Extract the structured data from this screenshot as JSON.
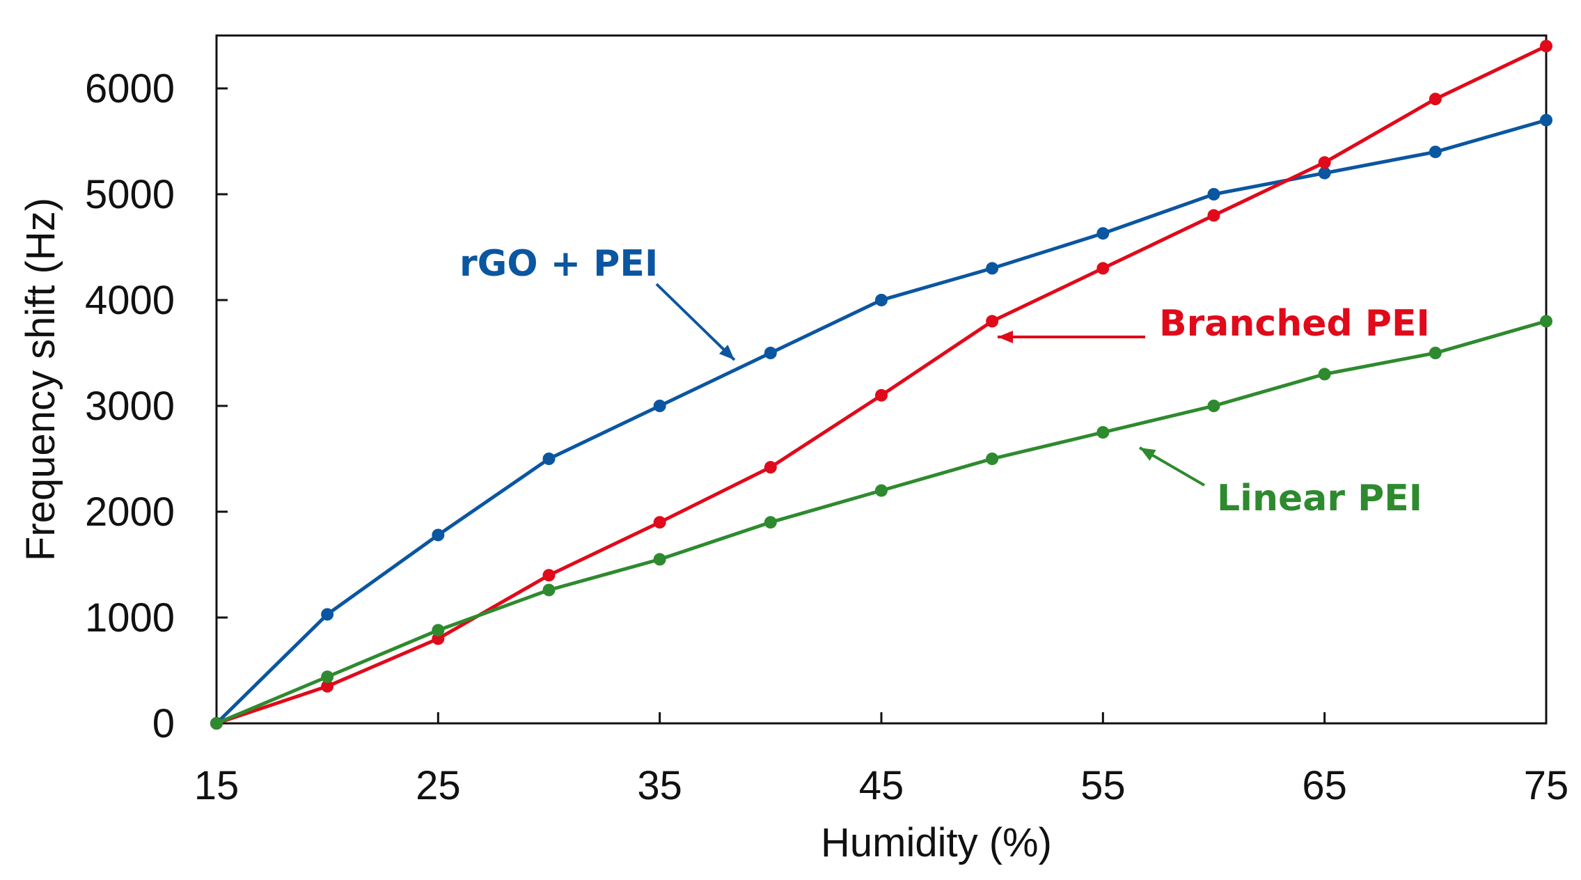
{
  "chart_data": {
    "type": "line",
    "title": "",
    "xlabel": "Humidity (%)",
    "ylabel": "Frequency shift (Hz)",
    "xlim": [
      15,
      75
    ],
    "ylim": [
      0,
      6500
    ],
    "xticks": [
      15,
      25,
      35,
      45,
      55,
      65,
      75
    ],
    "yticks": [
      0,
      1000,
      2000,
      3000,
      4000,
      5000,
      6000
    ],
    "x": [
      15,
      20,
      25,
      30,
      35,
      40,
      45,
      50,
      55,
      60,
      65,
      70,
      75
    ],
    "grid": false,
    "legend": "none",
    "series": [
      {
        "name": "rGO + PEI",
        "color": "#0b56a0",
        "values": [
          0,
          1030,
          1780,
          2500,
          3000,
          3500,
          4000,
          4300,
          4630,
          5000,
          5200,
          5400,
          5700
        ]
      },
      {
        "name": "Branched PEI",
        "color": "#e00a1a",
        "values": [
          0,
          350,
          800,
          1400,
          1900,
          2420,
          3100,
          3800,
          4300,
          4800,
          5300,
          5900,
          6400
        ]
      },
      {
        "name": "Linear PEI",
        "color": "#2e8a2e",
        "values": [
          0,
          440,
          880,
          1260,
          1550,
          1900,
          2200,
          2500,
          2750,
          3000,
          3300,
          3500,
          3800
        ]
      }
    ],
    "annotations": [
      {
        "text": "rGO + PEI",
        "color": "#0b56a0",
        "series": 0
      },
      {
        "text": "Branched PEI",
        "color": "#e00a1a",
        "series": 1
      },
      {
        "text": "Linear PEI",
        "color": "#2e8a2e",
        "series": 2
      }
    ]
  }
}
